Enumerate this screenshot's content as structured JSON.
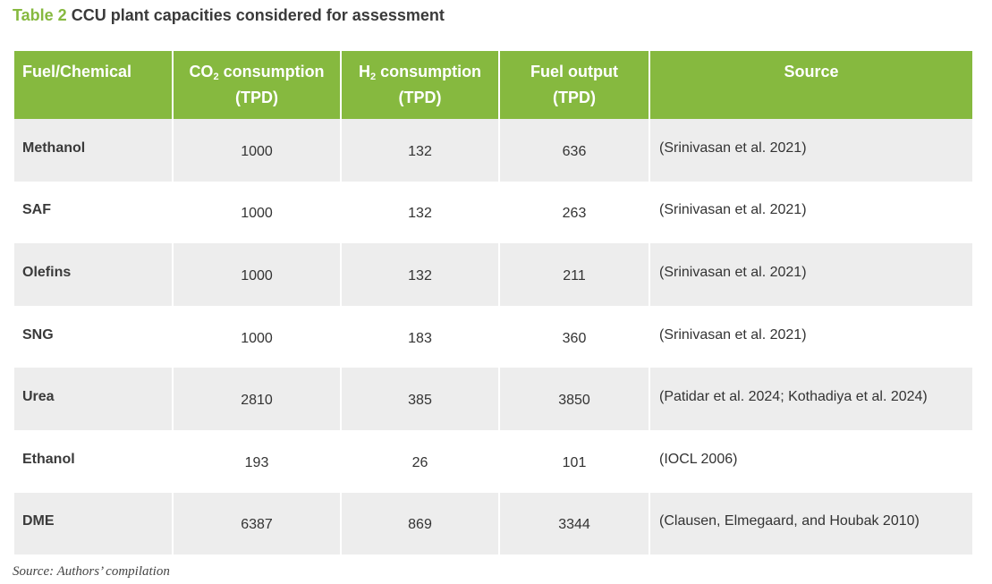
{
  "caption": {
    "label": "Table 2",
    "title": "CCU plant capacities considered for assessment"
  },
  "table": {
    "headers": {
      "col1": "Fuel/Chemical",
      "col2_pre": "CO",
      "col2_sub": "2",
      "col2_post": " consumption",
      "col2_unit": "(TPD)",
      "col3_pre": "H",
      "col3_sub": "2",
      "col3_post": " consumption",
      "col3_unit": "(TPD)",
      "col4": "Fuel output",
      "col4_unit": "(TPD)",
      "col5": "Source"
    },
    "rows": [
      {
        "fuel": "Methanol",
        "co2": "1000",
        "h2": "132",
        "output": "636",
        "source": "(Srinivasan et al. 2021)"
      },
      {
        "fuel": "SAF",
        "co2": "1000",
        "h2": "132",
        "output": "263",
        "source": "(Srinivasan et al. 2021)"
      },
      {
        "fuel": "Olefins",
        "co2": "1000",
        "h2": "132",
        "output": "211",
        "source": "(Srinivasan et al. 2021)"
      },
      {
        "fuel": "SNG",
        "co2": "1000",
        "h2": "183",
        "output": "360",
        "source": "(Srinivasan et al. 2021)"
      },
      {
        "fuel": "Urea",
        "co2": "2810",
        "h2": "385",
        "output": "3850",
        "source": "(Patidar et al. 2024; Kothadiya et al. 2024)"
      },
      {
        "fuel": "Ethanol",
        "co2": "193",
        "h2": "26",
        "output": "101",
        "source": "(IOCL 2006)"
      },
      {
        "fuel": "DME",
        "co2": "6387",
        "h2": "869",
        "output": "3344",
        "source": "(Clausen, Elmegaard, and Houbak 2010)"
      }
    ]
  },
  "source_note": "Source: Authors’ compilation",
  "colors": {
    "header_green": "#86b93f",
    "row_shade": "#ededed"
  }
}
